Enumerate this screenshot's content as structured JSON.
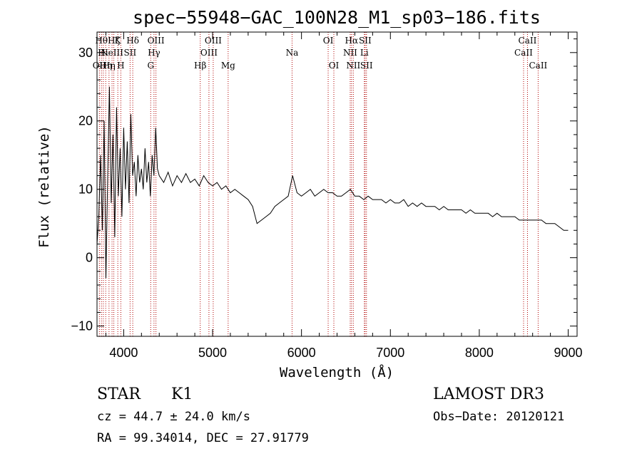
{
  "chart_data": {
    "type": "line",
    "title": "spec−55948−GAC_100N28_M1_sp03−186.fits",
    "xlabel": "Wavelength (Å)",
    "ylabel": "Flux (relative)",
    "xlim": [
      3700,
      9100
    ],
    "ylim": [
      -11.5,
      33
    ],
    "xticks": [
      4000,
      5000,
      6000,
      7000,
      8000,
      9000
    ],
    "xtick_labels": [
      "4000",
      "5000",
      "6000",
      "7000",
      "8000",
      "9000"
    ],
    "yticks": [
      -10,
      0,
      10,
      20,
      30
    ],
    "ytick_labels": [
      "−10",
      "0",
      "10",
      "20",
      "30"
    ],
    "grid": false,
    "series": [
      {
        "name": "flux",
        "x": [
          3700,
          3720,
          3740,
          3760,
          3780,
          3800,
          3820,
          3840,
          3860,
          3880,
          3900,
          3920,
          3940,
          3960,
          3980,
          4000,
          4020,
          4040,
          4060,
          4080,
          4100,
          4120,
          4140,
          4160,
          4180,
          4200,
          4220,
          4240,
          4260,
          4280,
          4300,
          4320,
          4340,
          4360,
          4380,
          4400,
          4450,
          4500,
          4550,
          4600,
          4650,
          4700,
          4750,
          4800,
          4850,
          4900,
          4950,
          5000,
          5050,
          5100,
          5150,
          5200,
          5250,
          5300,
          5350,
          5400,
          5450,
          5500,
          5550,
          5600,
          5650,
          5700,
          5750,
          5800,
          5850,
          5900,
          5950,
          6000,
          6050,
          6100,
          6150,
          6200,
          6250,
          6300,
          6350,
          6400,
          6450,
          6500,
          6550,
          6600,
          6650,
          6700,
          6750,
          6800,
          6850,
          6900,
          6950,
          7000,
          7050,
          7100,
          7150,
          7200,
          7250,
          7300,
          7350,
          7400,
          7450,
          7500,
          7550,
          7600,
          7650,
          7700,
          7750,
          7800,
          7850,
          7900,
          7950,
          8000,
          8050,
          8100,
          8150,
          8200,
          8250,
          8300,
          8350,
          8400,
          8450,
          8500,
          8550,
          8600,
          8650,
          8700,
          8750,
          8800,
          8850,
          8900,
          8950,
          9000
        ],
        "y": [
          2,
          6,
          15,
          4,
          20,
          -3,
          12,
          25,
          8,
          18,
          3,
          22,
          9,
          16,
          6,
          19,
          10,
          17,
          8,
          21,
          12,
          14,
          9,
          15,
          11,
          13,
          10,
          16,
          11,
          14,
          9,
          15,
          12,
          19,
          13,
          12,
          11,
          12.5,
          10.5,
          12,
          11,
          12.3,
          11,
          11.5,
          10.5,
          12,
          11,
          10.5,
          11,
          10,
          10.5,
          9.5,
          10,
          9.5,
          9,
          8.5,
          7.5,
          5,
          5.5,
          6,
          6.5,
          7.5,
          8,
          8.5,
          9,
          12,
          9.5,
          9,
          9.5,
          10,
          9,
          9.5,
          10,
          9.5,
          9.5,
          9,
          9,
          9.5,
          10,
          9,
          9,
          8.5,
          9,
          8.5,
          8.5,
          8.5,
          8,
          8.5,
          8,
          8,
          8.5,
          7.5,
          8,
          7.5,
          8,
          7.5,
          7.5,
          7.5,
          7,
          7.5,
          7,
          7,
          7,
          7,
          6.5,
          7,
          6.5,
          6.5,
          6.5,
          6.5,
          6,
          6.5,
          6,
          6,
          6,
          6,
          5.5,
          5.5,
          5.5,
          5.5,
          5.5,
          5.5,
          5,
          5,
          5,
          4.5,
          4,
          4
        ]
      }
    ],
    "lines": [
      {
        "wave": 3727,
        "label": "OII",
        "row": 2
      },
      {
        "wave": 3750,
        "label": "Hθ",
        "row": 0
      },
      {
        "wave": 3771,
        "label": "Hι",
        "row": 1
      },
      {
        "wave": 3798,
        "label": "Hη",
        "row": 2
      },
      {
        "wave": 3835,
        "label": "Hη",
        "row": 2
      },
      {
        "wave": 3869,
        "label": "NeIII",
        "row": 1
      },
      {
        "wave": 3889,
        "label": "Hζ",
        "row": 0
      },
      {
        "wave": 3934,
        "label": "K",
        "row": 0
      },
      {
        "wave": 3968,
        "label": "H",
        "row": 2
      },
      {
        "wave": 4072,
        "label": "SII",
        "row": 1
      },
      {
        "wave": 4102,
        "label": "Hδ",
        "row": 0
      },
      {
        "wave": 4304,
        "label": "G",
        "row": 2
      },
      {
        "wave": 4341,
        "label": "Hγ",
        "row": 1
      },
      {
        "wave": 4363,
        "label": "OIII",
        "row": 0
      },
      {
        "wave": 4861,
        "label": "Hβ",
        "row": 2
      },
      {
        "wave": 4959,
        "label": "OIII",
        "row": 1
      },
      {
        "wave": 5007,
        "label": "OIII",
        "row": 0
      },
      {
        "wave": 5175,
        "label": "Mg",
        "row": 2
      },
      {
        "wave": 5894,
        "label": "Na",
        "row": 1
      },
      {
        "wave": 6300,
        "label": "OI",
        "row": 0
      },
      {
        "wave": 6364,
        "label": "OI",
        "row": 2
      },
      {
        "wave": 6548,
        "label": "NII",
        "row": 1
      },
      {
        "wave": 6563,
        "label": "Hα",
        "row": 0
      },
      {
        "wave": 6583,
        "label": "NII",
        "row": 2
      },
      {
        "wave": 6707,
        "label": "Li",
        "row": 1
      },
      {
        "wave": 6716,
        "label": "SII",
        "row": 0
      },
      {
        "wave": 6731,
        "label": "SII",
        "row": 2
      },
      {
        "wave": 8498,
        "label": "CaII",
        "row": 1
      },
      {
        "wave": 8542,
        "label": "CaII",
        "row": 0
      },
      {
        "wave": 8662,
        "label": "CaII",
        "row": 2
      }
    ]
  },
  "info": {
    "object_class": "STAR",
    "subclass": "K1",
    "survey": "LAMOST DR3",
    "redshift_text": "cz = 44.7 ± 24.0 km/s",
    "obs_date_text": "Obs−Date: 20120121",
    "coords_text": "RA =  99.34014, DEC =  27.91779"
  },
  "colors": {
    "spectrum": "#000000",
    "marker_lines": "#b00000",
    "background": "#ffffff"
  }
}
